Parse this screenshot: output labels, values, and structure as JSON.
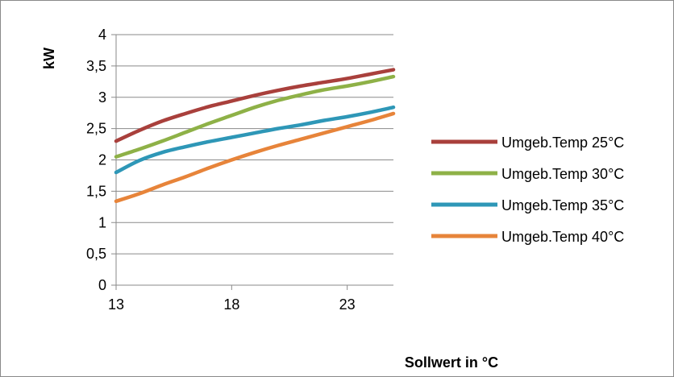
{
  "chart_data": {
    "type": "line",
    "title": "",
    "xlabel": "Sollwert in °C",
    "ylabel": "kW",
    "xlim": [
      13,
      25
    ],
    "ylim": [
      0,
      4
    ],
    "x_ticks": [
      13,
      18,
      23
    ],
    "y_ticks": [
      "0",
      "0,5",
      "1",
      "1,5",
      "2",
      "2,5",
      "3",
      "3,5",
      "4"
    ],
    "y_tick_values": [
      0,
      0.5,
      1,
      1.5,
      2,
      2.5,
      3,
      3.5,
      4
    ],
    "grid": "horizontal",
    "legend_position": "right",
    "x": [
      13,
      14,
      15,
      16,
      17,
      18,
      19,
      20,
      21,
      22,
      23,
      24,
      25
    ],
    "series": [
      {
        "name": "Umgeb.Temp 25°C",
        "color": "#a9403c",
        "values": [
          2.3,
          2.47,
          2.62,
          2.74,
          2.85,
          2.94,
          3.03,
          3.11,
          3.18,
          3.24,
          3.3,
          3.37,
          3.44
        ]
      },
      {
        "name": "Umgeb.Temp 30°C",
        "color": "#8eb147",
        "values": [
          2.05,
          2.17,
          2.3,
          2.44,
          2.58,
          2.71,
          2.84,
          2.95,
          3.04,
          3.12,
          3.18,
          3.25,
          3.33
        ]
      },
      {
        "name": "Umgeb.Temp 35°C",
        "color": "#2e97b7",
        "values": [
          1.8,
          1.99,
          2.12,
          2.21,
          2.29,
          2.36,
          2.43,
          2.5,
          2.56,
          2.63,
          2.69,
          2.76,
          2.84
        ]
      },
      {
        "name": "Umgeb.Temp 40°C",
        "color": "#e7843a",
        "values": [
          1.34,
          1.46,
          1.6,
          1.73,
          1.87,
          2.0,
          2.12,
          2.23,
          2.33,
          2.43,
          2.53,
          2.63,
          2.74
        ]
      }
    ]
  }
}
